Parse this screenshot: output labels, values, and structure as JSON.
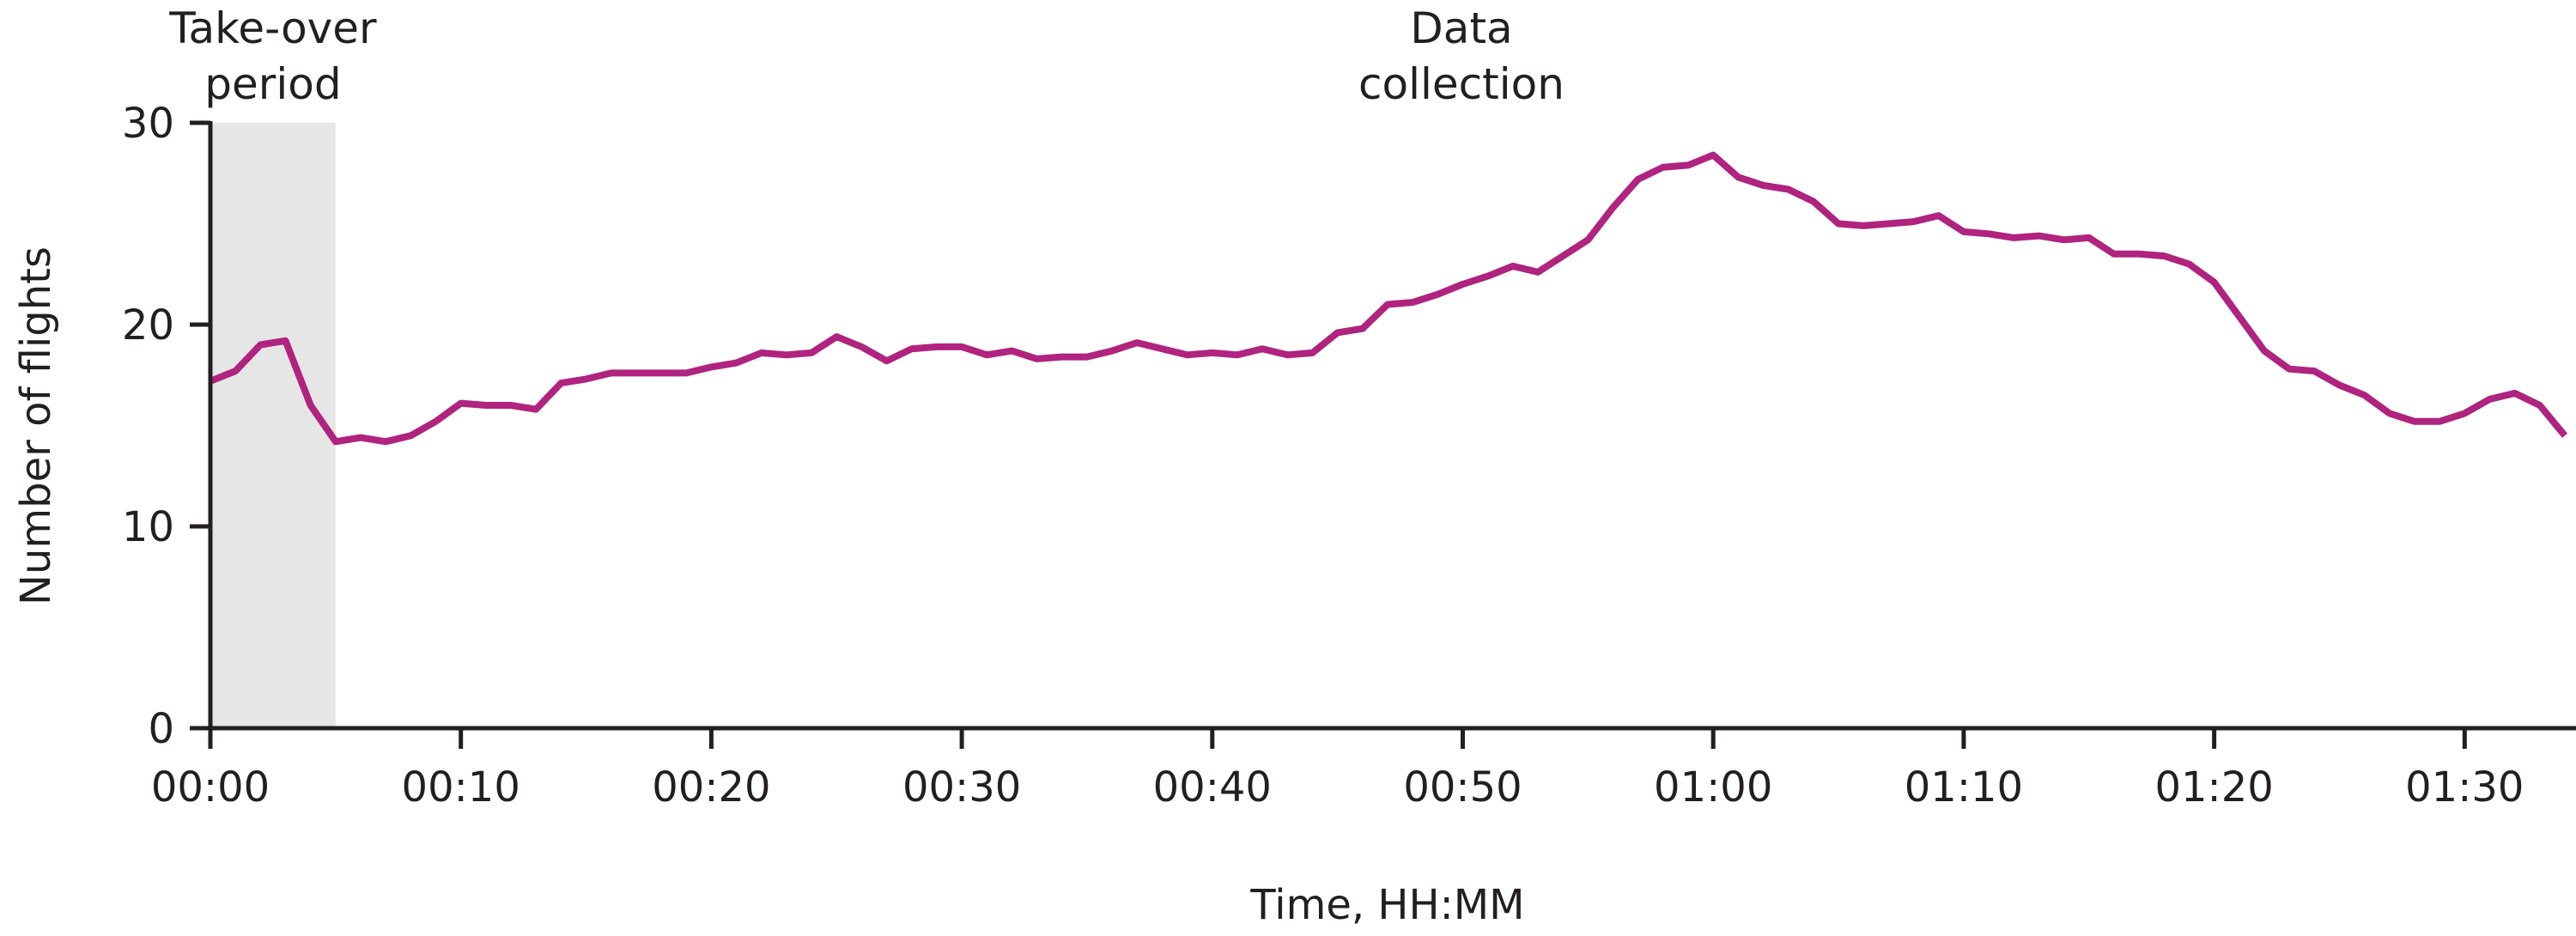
{
  "chart_data": {
    "type": "line",
    "title": "",
    "xlabel": "Time, HH:MM",
    "ylabel": "Number of flights",
    "xlim_minutes": [
      0,
      94
    ],
    "ylim": [
      0,
      30
    ],
    "grid": false,
    "line_color": "#b0237f",
    "shade_color": "#e6e6e6",
    "x_ticks": [
      {
        "minute": 0,
        "label": "00:00"
      },
      {
        "minute": 10,
        "label": "00:10"
      },
      {
        "minute": 20,
        "label": "00:20"
      },
      {
        "minute": 30,
        "label": "00:30"
      },
      {
        "minute": 40,
        "label": "00:40"
      },
      {
        "minute": 50,
        "label": "00:50"
      },
      {
        "minute": 60,
        "label": "01:00"
      },
      {
        "minute": 70,
        "label": "01:10"
      },
      {
        "minute": 80,
        "label": "01:20"
      },
      {
        "minute": 90,
        "label": "01:30"
      }
    ],
    "y_ticks": [
      0,
      10,
      20,
      30
    ],
    "annotations": [
      {
        "lines": [
          "Take-over",
          "period"
        ],
        "range_minutes": [
          0,
          5
        ],
        "shaded": true
      },
      {
        "lines": [
          "Data",
          "collection"
        ],
        "range_minutes": [
          5,
          94
        ],
        "shaded": false
      }
    ],
    "values": [
      17.2,
      17.7,
      19.0,
      19.2,
      16.0,
      14.2,
      14.4,
      14.2,
      14.5,
      15.2,
      16.1,
      16.0,
      16.0,
      15.8,
      17.1,
      17.3,
      17.6,
      17.6,
      17.6,
      17.6,
      17.9,
      18.1,
      18.6,
      18.5,
      18.6,
      19.4,
      18.9,
      18.2,
      18.8,
      18.9,
      18.9,
      18.5,
      18.7,
      18.3,
      18.4,
      18.4,
      18.7,
      19.1,
      18.8,
      18.5,
      18.6,
      18.5,
      18.8,
      18.5,
      18.6,
      19.6,
      19.8,
      21.0,
      21.1,
      21.5,
      22.0,
      22.4,
      22.9,
      22.6,
      23.4,
      24.2,
      25.8,
      27.2,
      27.8,
      27.9,
      28.4,
      27.3,
      26.9,
      26.7,
      26.1,
      25.0,
      24.9,
      25.0,
      25.1,
      25.4,
      24.6,
      24.5,
      24.3,
      24.4,
      24.2,
      24.3,
      23.5,
      23.5,
      23.4,
      23.0,
      22.1,
      20.4,
      18.7,
      17.8,
      17.7,
      17.0,
      16.5,
      15.6,
      15.2,
      15.2,
      15.6,
      16.3,
      16.6,
      16.0,
      14.5
    ]
  }
}
